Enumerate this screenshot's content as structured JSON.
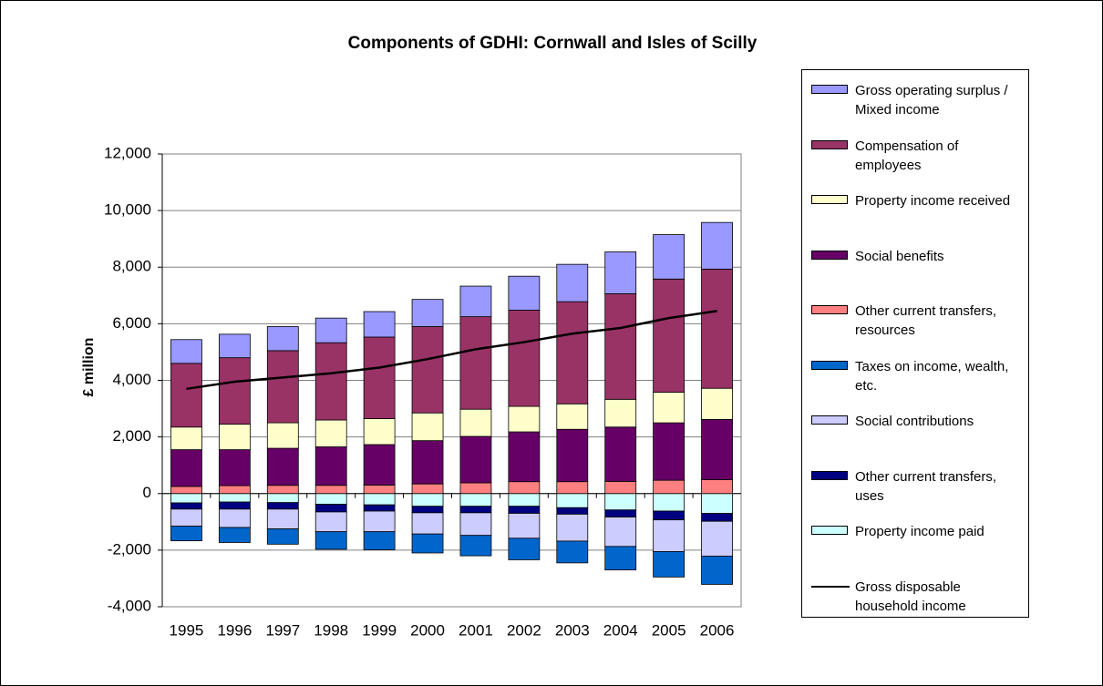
{
  "chart_data": {
    "type": "bar",
    "stacked": true,
    "title": "Components of GDHI: Cornwall and Isles of Scilly",
    "y_label": "£ million",
    "categories": [
      "1995",
      "1996",
      "1997",
      "1998",
      "1999",
      "2000",
      "2001",
      "2002",
      "2003",
      "2004",
      "2005",
      "2006"
    ],
    "ylim": [
      -4000,
      12000
    ],
    "yticks": [
      {
        "value": -4000,
        "label": "-4,000"
      },
      {
        "value": -2000,
        "label": "-2,000"
      },
      0,
      {
        "value": 2000,
        "label": "2,000"
      },
      {
        "value": 4000,
        "label": "4,000"
      },
      {
        "value": 6000,
        "label": "6,000"
      },
      {
        "value": 8000,
        "label": "8,000"
      },
      {
        "value": 10000,
        "label": "10,000"
      },
      {
        "value": 12000,
        "label": "12,000"
      }
    ],
    "grid": true,
    "series": [
      {
        "name": "Gross operating surplus / Mixed income",
        "color": "#9999ff",
        "values": [
          840,
          830,
          850,
          870,
          900,
          960,
          1080,
          1200,
          1320,
          1480,
          1570,
          1650
        ]
      },
      {
        "name": "Compensation of employees",
        "color": "#993366",
        "values": [
          2250,
          2350,
          2550,
          2730,
          2880,
          3050,
          3270,
          3400,
          3610,
          3730,
          4000,
          4210
        ]
      },
      {
        "name": "Property income received",
        "color": "#ffffcc",
        "values": [
          800,
          900,
          900,
          950,
          920,
          980,
          960,
          900,
          900,
          980,
          1080,
          1100
        ]
      },
      {
        "name": "Social benefits",
        "color": "#660066",
        "values": [
          1300,
          1270,
          1310,
          1360,
          1430,
          1530,
          1640,
          1760,
          1850,
          1920,
          2030,
          2130
        ]
      },
      {
        "name": "Other current transfers, resources",
        "color": "#ff8080",
        "values": [
          250,
          280,
          290,
          290,
          300,
          340,
          380,
          420,
          420,
          430,
          470,
          490
        ]
      },
      {
        "name": "Taxes on income, wealth, etc.",
        "color": "#0066cc",
        "values": [
          -520,
          -530,
          -540,
          -620,
          -640,
          -670,
          -720,
          -760,
          -770,
          -830,
          -900,
          -1000
        ]
      },
      {
        "name": "Social contributions",
        "color": "#ccccff",
        "values": [
          -600,
          -650,
          -700,
          -700,
          -730,
          -750,
          -800,
          -880,
          -950,
          -1040,
          -1120,
          -1230
        ]
      },
      {
        "name": "Other current transfers, uses",
        "color": "#000080",
        "values": [
          -220,
          -250,
          -230,
          -270,
          -220,
          -230,
          -230,
          -250,
          -230,
          -250,
          -310,
          -280
        ]
      },
      {
        "name": "Property income paid",
        "color": "#ccffff",
        "values": [
          -330,
          -300,
          -320,
          -380,
          -400,
          -450,
          -450,
          -450,
          -500,
          -580,
          -620,
          -700
        ]
      },
      {
        "name": "Gross disposable household income",
        "type": "line",
        "color": "#000000",
        "values": [
          3700,
          3950,
          4100,
          4250,
          4450,
          4750,
          5100,
          5350,
          5650,
          5850,
          6200,
          6450
        ]
      }
    ]
  }
}
